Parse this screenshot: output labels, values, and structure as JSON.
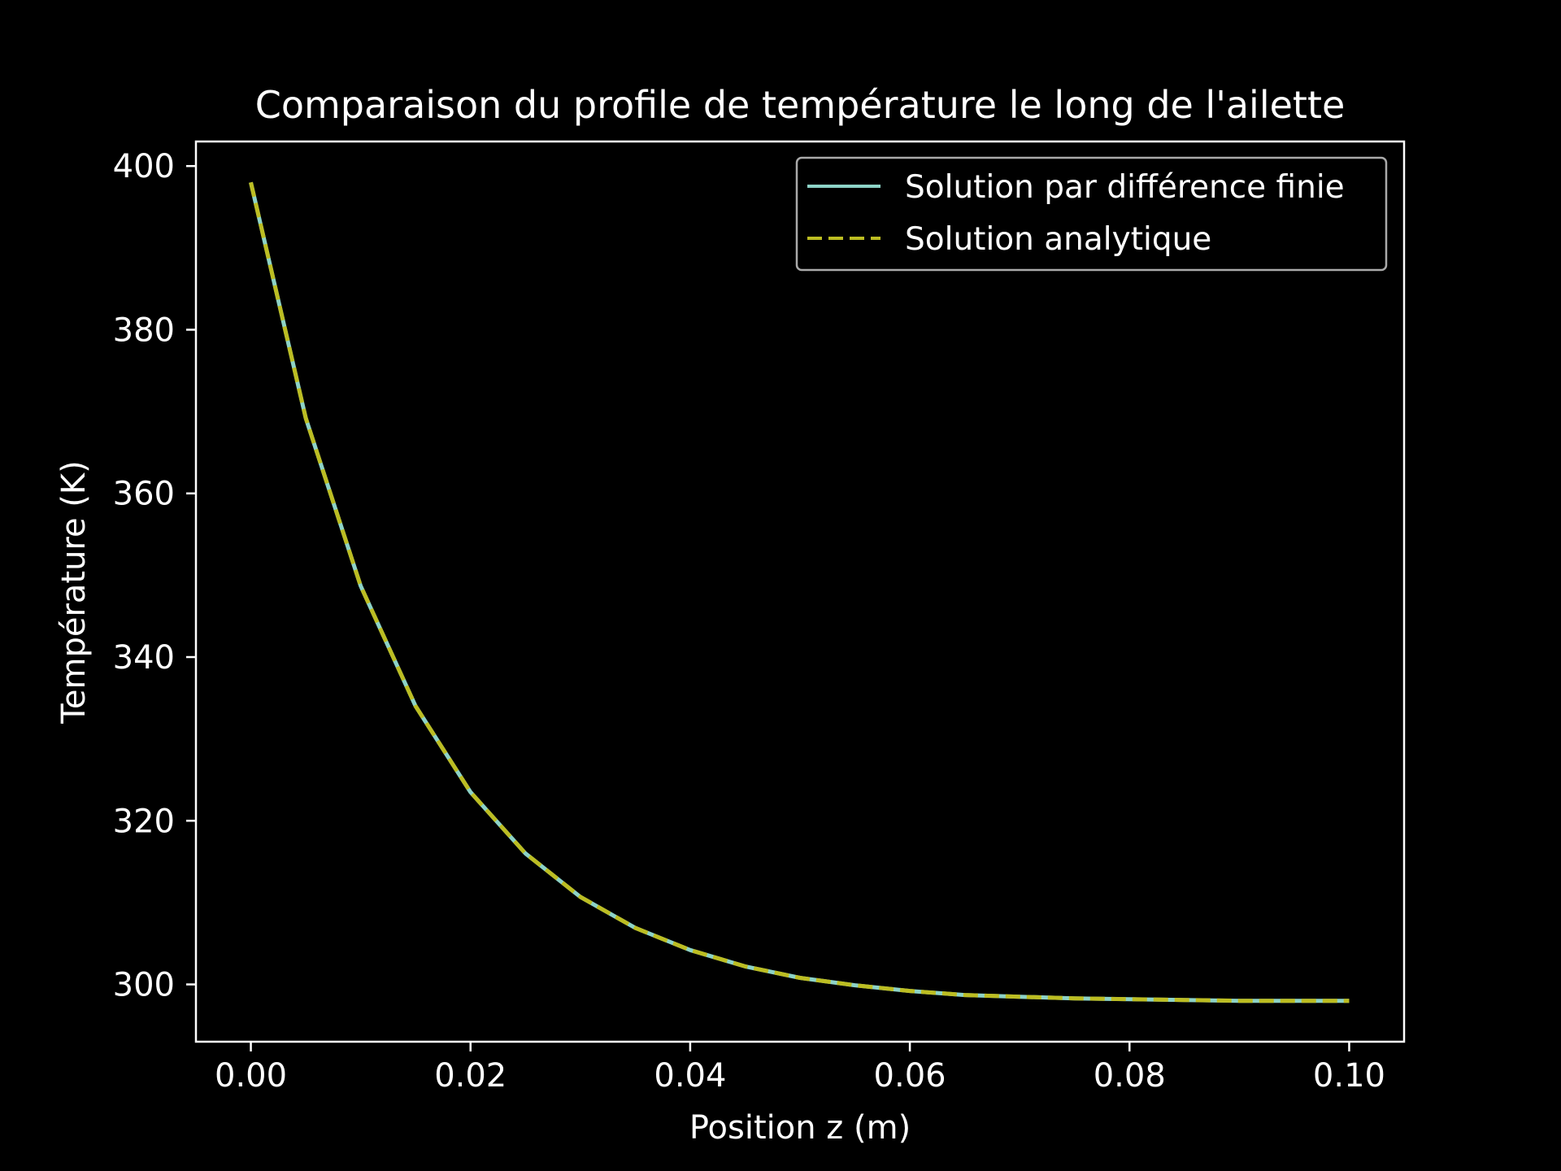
{
  "chart_data": {
    "type": "line",
    "title": "Comparaison du profile de température le long de l'ailette",
    "xlabel": "Position z (m)",
    "ylabel": "Température (K)",
    "xlim": [
      -0.005,
      0.105
    ],
    "ylim": [
      293,
      403
    ],
    "xticks": [
      0.0,
      0.02,
      0.04,
      0.06,
      0.08,
      0.1
    ],
    "xtick_labels": [
      "0.00",
      "0.02",
      "0.04",
      "0.06",
      "0.08",
      "0.10"
    ],
    "yticks": [
      300,
      320,
      340,
      360,
      380,
      400
    ],
    "ytick_labels": [
      "300",
      "320",
      "340",
      "360",
      "380",
      "400"
    ],
    "grid": false,
    "legend_position": "top-right",
    "background": "#000000",
    "x": [
      0.0,
      0.005,
      0.01,
      0.015,
      0.02,
      0.025,
      0.03,
      0.035,
      0.04,
      0.045,
      0.05,
      0.055,
      0.06,
      0.065,
      0.07,
      0.075,
      0.08,
      0.085,
      0.09,
      0.095,
      0.1
    ],
    "series": [
      {
        "name": "Solution par différence finie",
        "color": "#8dd3c7",
        "style": "solid",
        "values": [
          398.0,
          369.2,
          348.7,
          334.0,
          323.5,
          316.0,
          310.7,
          306.9,
          304.2,
          302.2,
          300.8,
          299.9,
          299.2,
          298.7,
          298.5,
          298.3,
          298.2,
          298.1,
          298.0,
          298.0,
          298.0
        ]
      },
      {
        "name": "Solution analytique",
        "color": "#bcbd22",
        "style": "dashed",
        "values": [
          398.0,
          369.2,
          348.7,
          334.0,
          323.5,
          316.0,
          310.7,
          306.9,
          304.2,
          302.2,
          300.8,
          299.9,
          299.2,
          298.7,
          298.5,
          298.3,
          298.2,
          298.1,
          298.0,
          298.0,
          298.0
        ]
      }
    ]
  }
}
